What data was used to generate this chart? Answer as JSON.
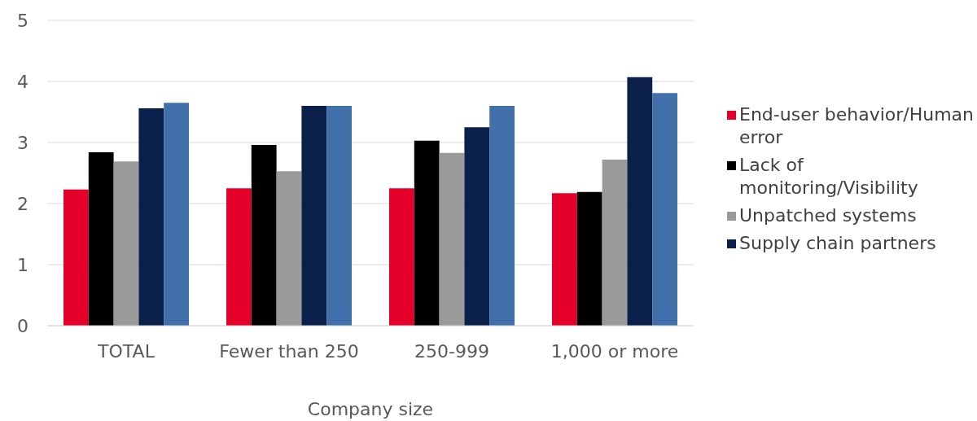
{
  "chart_data": {
    "type": "bar",
    "xlabel": "Company size",
    "categories": [
      "TOTAL",
      "Fewer than 250",
      "250-999",
      "1,000 or more"
    ],
    "series": [
      {
        "name": "End-user behavior/Human error",
        "color": "#e4002b",
        "values": [
          2.23,
          2.25,
          2.25,
          2.17
        ]
      },
      {
        "name": "Lack of monitoring/Visibility",
        "color": "#000000",
        "values": [
          2.84,
          2.96,
          3.03,
          2.19
        ]
      },
      {
        "name": "Unpatched systems",
        "color": "#9a9a9a",
        "values": [
          2.69,
          2.53,
          2.83,
          2.72
        ]
      },
      {
        "name": "Supply chain partners",
        "color": "#0b1f4b",
        "values": [
          3.56,
          3.6,
          3.25,
          4.07
        ]
      },
      {
        "color": "#4270ab",
        "values": [
          3.65,
          3.6,
          3.6,
          3.81
        ]
      }
    ],
    "ylim": [
      0,
      5
    ],
    "yticks": [
      0,
      1,
      2,
      3,
      4,
      5
    ],
    "grid": "y",
    "legend": "right"
  }
}
